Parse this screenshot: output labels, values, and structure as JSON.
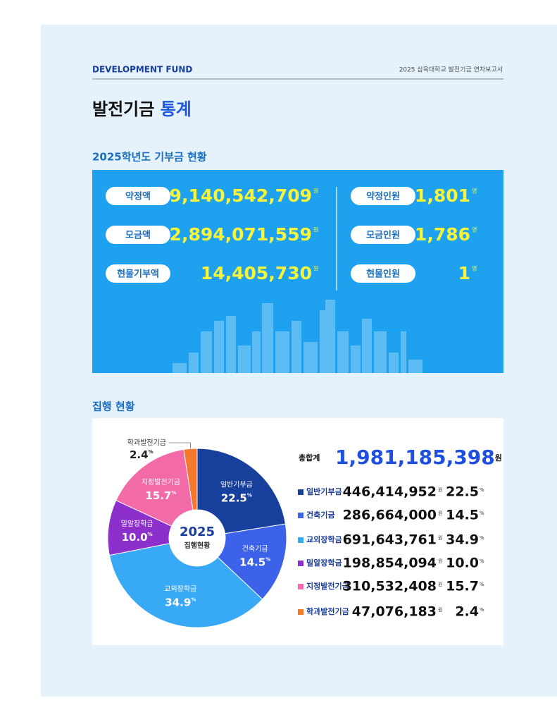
{
  "header": {
    "section": "DEVELOPMENT FUND",
    "publication": "2025 삼육대학교 발전기금 연차보고서"
  },
  "title": {
    "main": "발전기금",
    "highlight": "통계"
  },
  "donations": {
    "heading": "2025학년도 기부금 현황",
    "amounts": [
      {
        "label": "약정액",
        "value": "9,140,542,709",
        "unit": "원"
      },
      {
        "label": "모금액",
        "value": "2,894,071,559",
        "unit": "원"
      },
      {
        "label": "현물기부액",
        "value": "14,405,730",
        "unit": "원"
      }
    ],
    "people": [
      {
        "label": "약정인원",
        "value": "1,801",
        "unit": "명"
      },
      {
        "label": "모금인원",
        "value": "1,786",
        "unit": "명"
      },
      {
        "label": "현물인원",
        "value": "1",
        "unit": "명"
      }
    ]
  },
  "execution": {
    "heading": "집행 현황"
  },
  "chart_data": {
    "type": "pie",
    "center_title": "2025",
    "center_subtitle": "집행현황",
    "total_label": "총합계",
    "total": "1,981,185,398",
    "currency_unit": "원",
    "percent_unit": "%",
    "categories": [
      "일반기부금",
      "건축기금",
      "교외장학금",
      "밀알장학금",
      "지정발전기금",
      "학과발전기금"
    ],
    "values": [
      22.5,
      14.5,
      34.9,
      10.0,
      15.7,
      2.4
    ],
    "value_labels": [
      "22.5",
      "14.5",
      "34.9",
      "10.0",
      "15.7",
      "2.4"
    ],
    "amounts": [
      "446,414,952",
      "286,664,000",
      "691,643,761",
      "198,854,094",
      "310,532,408",
      "47,076,183"
    ],
    "colors": [
      "#173f9c",
      "#3d62ea",
      "#38a9f4",
      "#8c2fcb",
      "#f36aa9",
      "#f5792c"
    ]
  }
}
